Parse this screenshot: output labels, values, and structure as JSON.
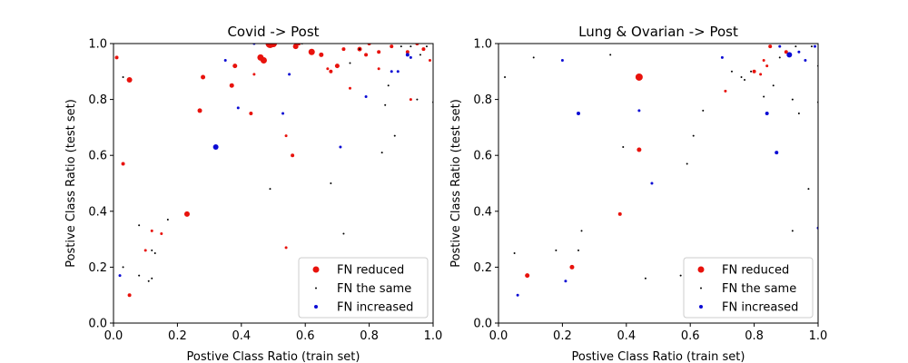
{
  "chart_data": [
    {
      "type": "scatter",
      "title": "Covid -> Post",
      "xlabel": "Postive Class Ratio (train set)",
      "ylabel": "Postive Class Ratio (test set)",
      "xlim": [
        0.0,
        1.0
      ],
      "ylim": [
        0.0,
        1.0
      ],
      "xticks": [
        "0.0",
        "0.2",
        "0.4",
        "0.6",
        "0.8",
        "1.0"
      ],
      "yticks": [
        "0.0",
        "0.2",
        "0.4",
        "0.6",
        "0.8",
        "1.0"
      ],
      "legend_position": "lower-right",
      "series": [
        {
          "name": "FN reduced",
          "color": "#e8120c",
          "points": [
            [
              0.01,
              0.95,
              2
            ],
            [
              0.03,
              0.57,
              2
            ],
            [
              0.05,
              0.87,
              3
            ],
            [
              0.05,
              0.1,
              2
            ],
            [
              0.1,
              0.26,
              1.5
            ],
            [
              0.12,
              0.33,
              1.5
            ],
            [
              0.15,
              0.32,
              1.5
            ],
            [
              0.23,
              0.39,
              3
            ],
            [
              0.27,
              0.76,
              2.5
            ],
            [
              0.28,
              0.88,
              2.5
            ],
            [
              0.37,
              0.85,
              2.5
            ],
            [
              0.38,
              0.92,
              2.5
            ],
            [
              0.43,
              0.75,
              2
            ],
            [
              0.44,
              0.89,
              1.5
            ],
            [
              0.46,
              0.95,
              3.5
            ],
            [
              0.47,
              0.94,
              3.5
            ],
            [
              0.49,
              1.0,
              5
            ],
            [
              0.5,
              1.0,
              4
            ],
            [
              0.54,
              0.67,
              1.5
            ],
            [
              0.54,
              0.27,
              1.5
            ],
            [
              0.56,
              0.6,
              2
            ],
            [
              0.57,
              0.99,
              3
            ],
            [
              0.58,
              1.0,
              2
            ],
            [
              0.62,
              0.97,
              3.5
            ],
            [
              0.65,
              0.96,
              2.5
            ],
            [
              0.67,
              0.91,
              1.5
            ],
            [
              0.68,
              0.9,
              2
            ],
            [
              0.7,
              0.92,
              2.5
            ],
            [
              0.72,
              0.98,
              2
            ],
            [
              0.74,
              0.84,
              1.5
            ],
            [
              0.77,
              0.98,
              2.5
            ],
            [
              0.79,
              0.96,
              2
            ],
            [
              0.8,
              1.0,
              2
            ],
            [
              0.83,
              0.97,
              2
            ],
            [
              0.83,
              0.91,
              1.5
            ],
            [
              0.87,
              0.99,
              2
            ],
            [
              0.92,
              0.97,
              2
            ],
            [
              0.93,
              0.8,
              1.5
            ],
            [
              0.95,
              1.0,
              2
            ],
            [
              0.97,
              0.98,
              2
            ],
            [
              0.99,
              0.94,
              1.5
            ]
          ]
        },
        {
          "name": "FN the same",
          "color": "#000000",
          "points": [
            [
              0.03,
              0.88,
              1
            ],
            [
              0.03,
              0.2,
              1
            ],
            [
              0.08,
              0.35,
              1
            ],
            [
              0.08,
              0.17,
              1
            ],
            [
              0.11,
              0.15,
              1
            ],
            [
              0.12,
              0.16,
              1
            ],
            [
              0.12,
              0.26,
              1
            ],
            [
              0.13,
              0.25,
              1
            ],
            [
              0.17,
              0.37,
              1
            ],
            [
              0.49,
              0.48,
              1
            ],
            [
              0.59,
              1.0,
              1
            ],
            [
              0.68,
              0.5,
              1
            ],
            [
              0.72,
              0.32,
              1
            ],
            [
              0.74,
              0.93,
              1
            ],
            [
              0.77,
              0.98,
              1
            ],
            [
              0.84,
              0.61,
              1
            ],
            [
              0.85,
              0.78,
              1
            ],
            [
              0.86,
              0.85,
              1
            ],
            [
              0.88,
              0.67,
              1
            ],
            [
              0.9,
              0.99,
              1
            ],
            [
              0.92,
              0.96,
              1
            ],
            [
              0.93,
              0.99,
              1
            ],
            [
              0.95,
              0.8,
              1
            ],
            [
              0.96,
              0.96,
              1
            ],
            [
              0.98,
              0.99,
              1
            ],
            [
              1.0,
              0.79,
              1
            ]
          ]
        },
        {
          "name": "FN increased",
          "color": "#0b0bd4",
          "points": [
            [
              0.02,
              0.17,
              1.5
            ],
            [
              0.32,
              0.63,
              3
            ],
            [
              0.35,
              0.94,
              1.5
            ],
            [
              0.39,
              0.77,
              1.5
            ],
            [
              0.44,
              1.0,
              1.5
            ],
            [
              0.53,
              0.75,
              1.5
            ],
            [
              0.55,
              0.89,
              1.5
            ],
            [
              0.71,
              0.63,
              1.5
            ],
            [
              0.79,
              0.81,
              1.5
            ],
            [
              0.87,
              0.9,
              1.5
            ],
            [
              0.89,
              0.9,
              1.5
            ],
            [
              0.92,
              0.96,
              2
            ],
            [
              0.93,
              0.95,
              1.5
            ]
          ]
        }
      ]
    },
    {
      "type": "scatter",
      "title": "Lung & Ovarian -> Post",
      "xlabel": "Postive Class Ratio (train set)",
      "ylabel": "Postive Class Ratio (test set)",
      "xlim": [
        0.0,
        1.0
      ],
      "ylim": [
        0.0,
        1.0
      ],
      "xticks": [
        "0.0",
        "0.2",
        "0.4",
        "0.6",
        "0.8",
        "1.0"
      ],
      "yticks": [
        "0.0",
        "0.2",
        "0.4",
        "0.6",
        "0.8",
        "1.0"
      ],
      "legend_position": "lower-right",
      "series": [
        {
          "name": "FN reduced",
          "color": "#e8120c",
          "points": [
            [
              0.09,
              0.17,
              2.5
            ],
            [
              0.23,
              0.2,
              2.5
            ],
            [
              0.38,
              0.39,
              2
            ],
            [
              0.44,
              0.88,
              4
            ],
            [
              0.44,
              0.62,
              2.5
            ],
            [
              0.71,
              0.83,
              1.5
            ],
            [
              0.8,
              0.9,
              2
            ],
            [
              0.82,
              0.89,
              1.5
            ],
            [
              0.83,
              0.94,
              1.5
            ],
            [
              0.84,
              0.92,
              1.5
            ],
            [
              0.85,
              0.99,
              2
            ],
            [
              0.9,
              0.97,
              2
            ]
          ]
        },
        {
          "name": "FN the same",
          "color": "#000000",
          "points": [
            [
              0.02,
              0.88,
              1
            ],
            [
              0.05,
              0.25,
              1
            ],
            [
              0.11,
              0.95,
              1
            ],
            [
              0.18,
              0.26,
              1
            ],
            [
              0.25,
              0.26,
              1
            ],
            [
              0.26,
              0.33,
              1
            ],
            [
              0.35,
              0.96,
              1
            ],
            [
              0.39,
              0.63,
              1
            ],
            [
              0.46,
              0.16,
              1
            ],
            [
              0.57,
              0.17,
              1
            ],
            [
              0.59,
              0.57,
              1
            ],
            [
              0.61,
              0.67,
              1
            ],
            [
              0.64,
              0.76,
              1
            ],
            [
              0.73,
              0.9,
              1
            ],
            [
              0.76,
              0.88,
              1
            ],
            [
              0.77,
              0.87,
              1
            ],
            [
              0.79,
              0.9,
              1
            ],
            [
              0.83,
              0.81,
              1
            ],
            [
              0.86,
              0.85,
              1
            ],
            [
              0.88,
              0.95,
              1
            ],
            [
              0.92,
              0.8,
              1
            ],
            [
              0.92,
              0.33,
              1
            ],
            [
              0.93,
              0.99,
              1
            ],
            [
              0.94,
              0.75,
              1
            ],
            [
              0.97,
              0.48,
              1
            ],
            [
              0.98,
              0.99,
              1
            ],
            [
              1.0,
              0.92,
              1
            ],
            [
              1.0,
              0.79,
              1
            ]
          ]
        },
        {
          "name": "FN increased",
          "color": "#0b0bd4",
          "points": [
            [
              0.06,
              0.1,
              1.5
            ],
            [
              0.2,
              0.94,
              1.5
            ],
            [
              0.21,
              0.15,
              1.5
            ],
            [
              0.25,
              0.75,
              2
            ],
            [
              0.44,
              0.76,
              1.5
            ],
            [
              0.48,
              0.5,
              1.5
            ],
            [
              0.7,
              0.95,
              1.5
            ],
            [
              0.84,
              0.75,
              2
            ],
            [
              0.87,
              0.61,
              2
            ],
            [
              0.88,
              0.99,
              1.5
            ],
            [
              0.91,
              0.96,
              3
            ],
            [
              0.94,
              0.97,
              1.5
            ],
            [
              0.96,
              0.94,
              1.5
            ],
            [
              0.99,
              0.99,
              1.5
            ],
            [
              1.0,
              0.34,
              1.5
            ]
          ]
        }
      ]
    }
  ]
}
